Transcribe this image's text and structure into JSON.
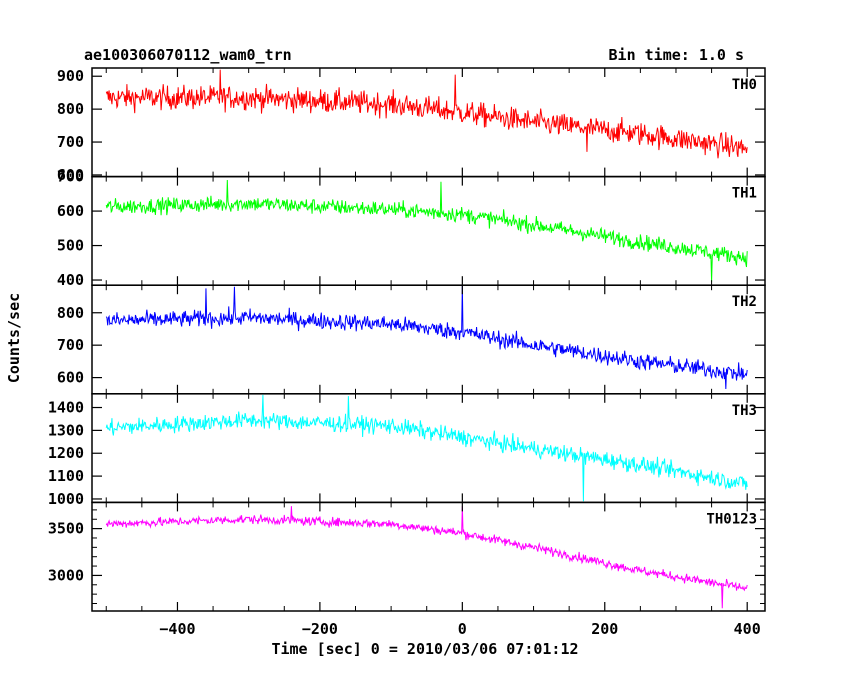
{
  "header": {
    "title": "ae100306070112_wam0_trn",
    "bin_time": "Bin time: 1.0 s"
  },
  "chart_data": {
    "type": "line",
    "title": "ae100306070112_wam0_trn",
    "subtitle": "Bin time: 1.0 s",
    "xlabel": "Time [sec] 0 = 2010/03/06 07:01:12",
    "ylabel": "Counts/sec",
    "xlim": [
      -520,
      425
    ],
    "x_ticks": [
      -400,
      -200,
      0,
      200,
      400
    ],
    "x_tick_labels": [
      "−400",
      "−200",
      "0",
      "200",
      "400"
    ],
    "x_range": [
      -500,
      400
    ],
    "bin_time_s": 1.0,
    "grid": false,
    "legend": "none",
    "panels": [
      {
        "name": "TH0",
        "color": "#ff0000",
        "ylim": [
          595,
          925
        ],
        "y_ticks": [
          600,
          700,
          800,
          900
        ],
        "trend": [
          [
            -500,
            835
          ],
          [
            -300,
            835
          ],
          [
            -100,
            815
          ],
          [
            0,
            790
          ],
          [
            100,
            760
          ],
          [
            250,
            725
          ],
          [
            400,
            680
          ]
        ],
        "noise_amplitude": 45,
        "spikes": [
          [
            -340,
            920
          ],
          [
            -10,
            905
          ],
          [
            175,
            670
          ]
        ]
      },
      {
        "name": "TH1",
        "color": "#00ff00",
        "ylim": [
          385,
          700
        ],
        "y_ticks": [
          400,
          500,
          600,
          700
        ],
        "trend": [
          [
            -500,
            612
          ],
          [
            -300,
            622
          ],
          [
            -100,
            605
          ],
          [
            0,
            590
          ],
          [
            100,
            560
          ],
          [
            250,
            510
          ],
          [
            400,
            465
          ]
        ],
        "noise_amplitude": 28,
        "spikes": [
          [
            -330,
            690
          ],
          [
            -30,
            685
          ],
          [
            350,
            395
          ]
        ]
      },
      {
        "name": "TH2",
        "color": "#0000ff",
        "ylim": [
          550,
          885
        ],
        "y_ticks": [
          600,
          700,
          800
        ],
        "trend": [
          [
            -500,
            775
          ],
          [
            -300,
            785
          ],
          [
            -100,
            765
          ],
          [
            0,
            740
          ],
          [
            100,
            700
          ],
          [
            250,
            650
          ],
          [
            400,
            610
          ]
        ],
        "noise_amplitude": 32,
        "spikes": [
          [
            -360,
            875
          ],
          [
            -320,
            880
          ],
          [
            0,
            885
          ],
          [
            370,
            565
          ]
        ]
      },
      {
        "name": "TH3",
        "color": "#00ffff",
        "ylim": [
          985,
          1460
        ],
        "y_ticks": [
          1000,
          1100,
          1200,
          1300,
          1400
        ],
        "trend": [
          [
            -500,
            1310
          ],
          [
            -300,
            1345
          ],
          [
            -100,
            1320
          ],
          [
            0,
            1270
          ],
          [
            100,
            1220
          ],
          [
            250,
            1150
          ],
          [
            400,
            1065
          ]
        ],
        "noise_amplitude": 45,
        "spikes": [
          [
            -280,
            1455
          ],
          [
            -160,
            1450
          ],
          [
            170,
            990
          ]
        ]
      },
      {
        "name": "TH0123",
        "color": "#ff00ff",
        "ylim": [
          2620,
          3780
        ],
        "y_ticks": [
          3000,
          3500
        ],
        "y_minor_ticks": [
          2700,
          2800,
          2900,
          3100,
          3200,
          3300,
          3400,
          3600,
          3700
        ],
        "trend": [
          [
            -500,
            3550
          ],
          [
            -300,
            3600
          ],
          [
            -100,
            3550
          ],
          [
            0,
            3450
          ],
          [
            100,
            3300
          ],
          [
            250,
            3050
          ],
          [
            400,
            2860
          ]
        ],
        "noise_amplitude": 60,
        "spikes": [
          [
            0,
            3740
          ],
          [
            -240,
            3740
          ],
          [
            365,
            2650
          ]
        ]
      }
    ]
  }
}
